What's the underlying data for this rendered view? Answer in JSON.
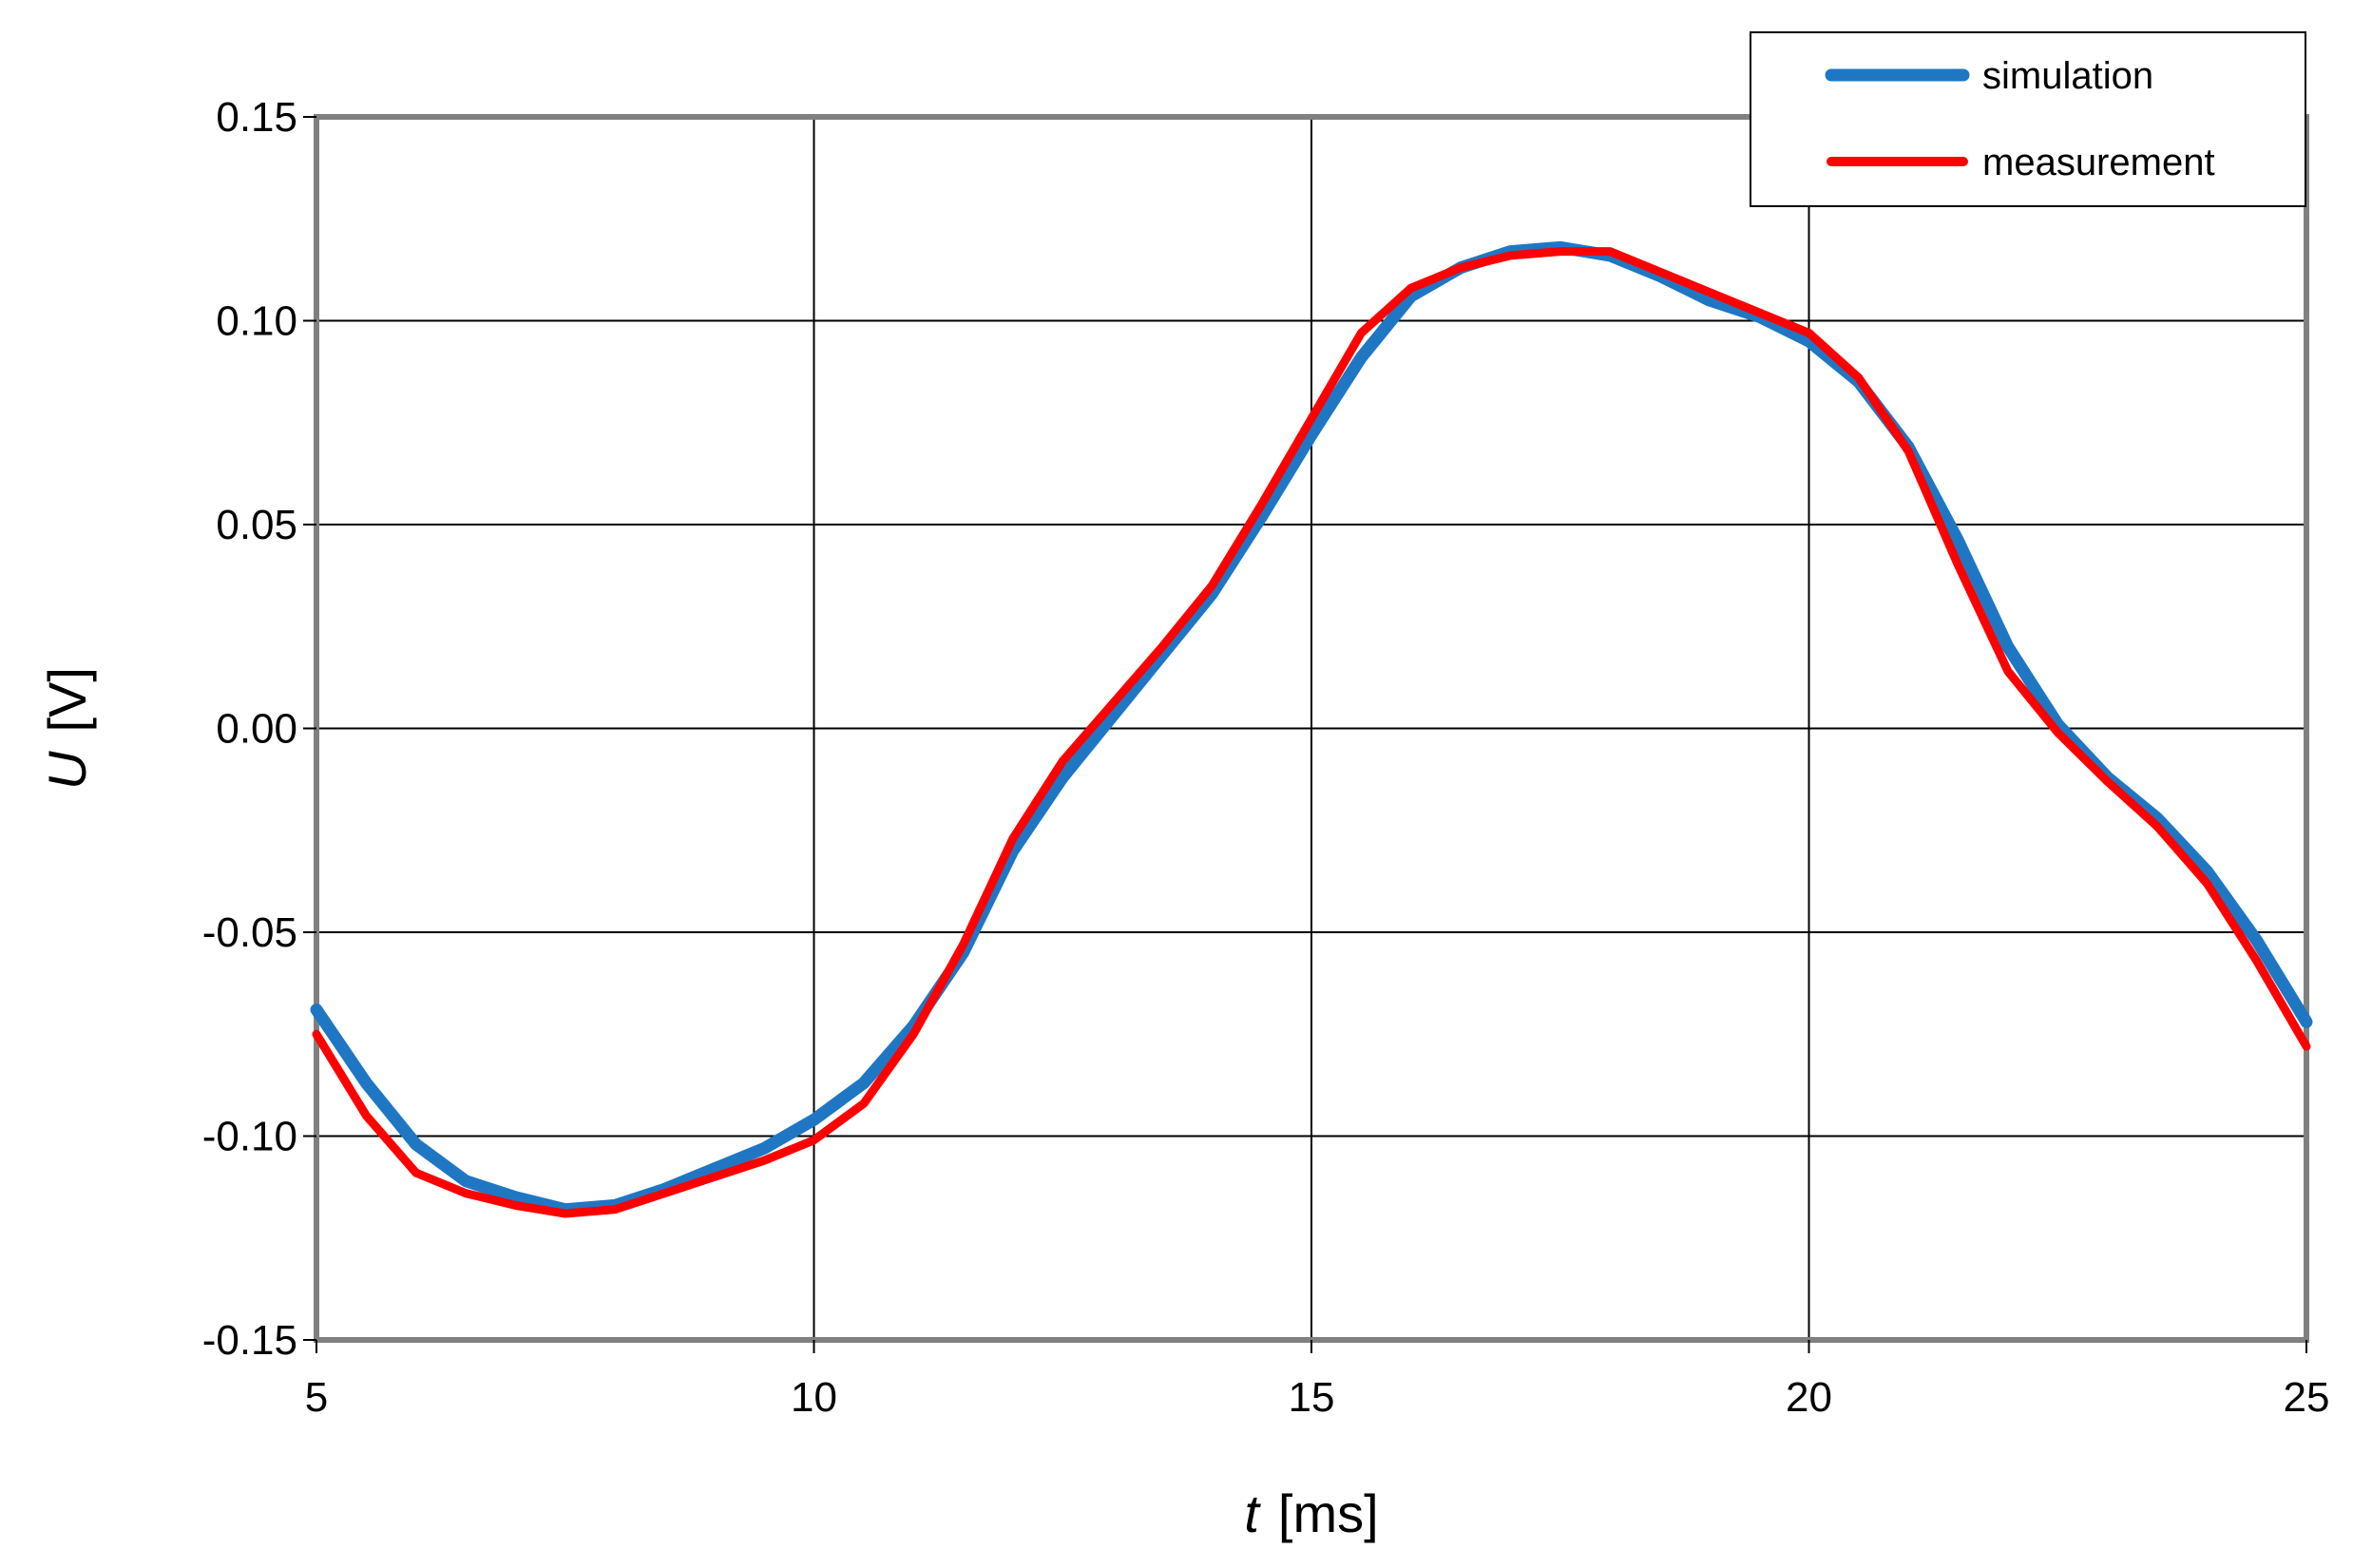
{
  "chart_data": {
    "type": "line",
    "title": "",
    "xlabel": {
      "symbol": "t",
      "unit": "[ms]"
    },
    "ylabel": {
      "symbol": "U",
      "unit": "[V]"
    },
    "xlim": [
      5,
      25
    ],
    "ylim": [
      -0.15,
      0.15
    ],
    "xticks": [
      5,
      10,
      15,
      20,
      25
    ],
    "xtick_labels": [
      "5",
      "10",
      "15",
      "20",
      "25"
    ],
    "yticks": [
      0.15,
      0.1,
      0.05,
      0.0,
      -0.05,
      -0.1,
      -0.15
    ],
    "ytick_labels": [
      "0.15",
      "0.10",
      "0.05",
      "0.00",
      "-0.05",
      "-0.10",
      "-0.15"
    ],
    "grid": true,
    "legend_position": "top-right",
    "series": [
      {
        "name": "simulation",
        "color": "#1f77c4",
        "x": [
          5.0,
          5.5,
          6.0,
          6.5,
          7.0,
          7.5,
          8.0,
          8.5,
          9.0,
          9.5,
          10.0,
          10.5,
          11.0,
          11.5,
          12.0,
          12.5,
          13.0,
          13.5,
          14.0,
          14.5,
          15.0,
          15.5,
          16.0,
          16.5,
          17.0,
          17.5,
          18.0,
          18.5,
          19.0,
          19.5,
          20.0,
          20.5,
          21.0,
          21.5,
          22.0,
          22.5,
          23.0,
          23.5,
          24.0,
          24.5,
          25.0
        ],
        "y": [
          -0.069,
          -0.087,
          -0.102,
          -0.111,
          -0.115,
          -0.118,
          -0.117,
          -0.113,
          -0.108,
          -0.103,
          -0.096,
          -0.087,
          -0.073,
          -0.055,
          -0.03,
          -0.012,
          0.003,
          0.018,
          0.033,
          0.052,
          0.072,
          0.091,
          0.106,
          0.113,
          0.117,
          0.118,
          0.116,
          0.111,
          0.105,
          0.101,
          0.095,
          0.085,
          0.069,
          0.046,
          0.02,
          0.001,
          -0.012,
          -0.022,
          -0.035,
          -0.052,
          -0.072
        ]
      },
      {
        "name": "measurement",
        "color": "#ff0000",
        "x": [
          5.0,
          5.5,
          6.0,
          6.5,
          7.0,
          7.5,
          8.0,
          8.5,
          9.0,
          9.5,
          10.0,
          10.5,
          11.0,
          11.5,
          12.0,
          12.5,
          13.0,
          13.5,
          14.0,
          14.5,
          15.0,
          15.5,
          16.0,
          16.5,
          17.0,
          17.5,
          18.0,
          18.5,
          19.0,
          19.5,
          20.0,
          20.5,
          21.0,
          21.5,
          22.0,
          22.5,
          23.0,
          23.5,
          24.0,
          24.5,
          25.0
        ],
        "y": [
          -0.075,
          -0.095,
          -0.109,
          -0.114,
          -0.117,
          -0.119,
          -0.118,
          -0.114,
          -0.11,
          -0.106,
          -0.101,
          -0.092,
          -0.075,
          -0.053,
          -0.027,
          -0.008,
          0.006,
          0.02,
          0.035,
          0.055,
          0.076,
          0.097,
          0.108,
          0.113,
          0.116,
          0.117,
          0.117,
          0.112,
          0.107,
          0.102,
          0.097,
          0.086,
          0.068,
          0.04,
          0.014,
          -0.001,
          -0.013,
          -0.024,
          -0.038,
          -0.057,
          -0.078
        ]
      }
    ]
  }
}
